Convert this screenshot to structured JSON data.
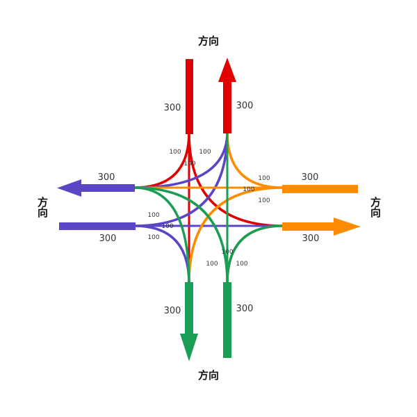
{
  "colors": {
    "north": "#e00000",
    "east": "#ff8c00",
    "south": "#1a9e55",
    "west": "#5b45c5"
  },
  "directions": {
    "north": "方向",
    "south": "方向",
    "west": "方向",
    "east": "方向"
  },
  "volumes": {
    "north_in": "300",
    "north_out": "300",
    "west_out": "300",
    "west_in": "300",
    "east_in": "300",
    "east_out": "300",
    "south_out": "300",
    "south_in": "300"
  },
  "turns": {
    "nw_left": "100",
    "nw_right": "100",
    "n_through": "100",
    "e_top": "100",
    "e_through": "100",
    "e_bottom": "100",
    "w_top": "100",
    "w_through": "100",
    "w_bottom": "100",
    "s_through": "100",
    "s_left": "100",
    "s_right": "100"
  }
}
